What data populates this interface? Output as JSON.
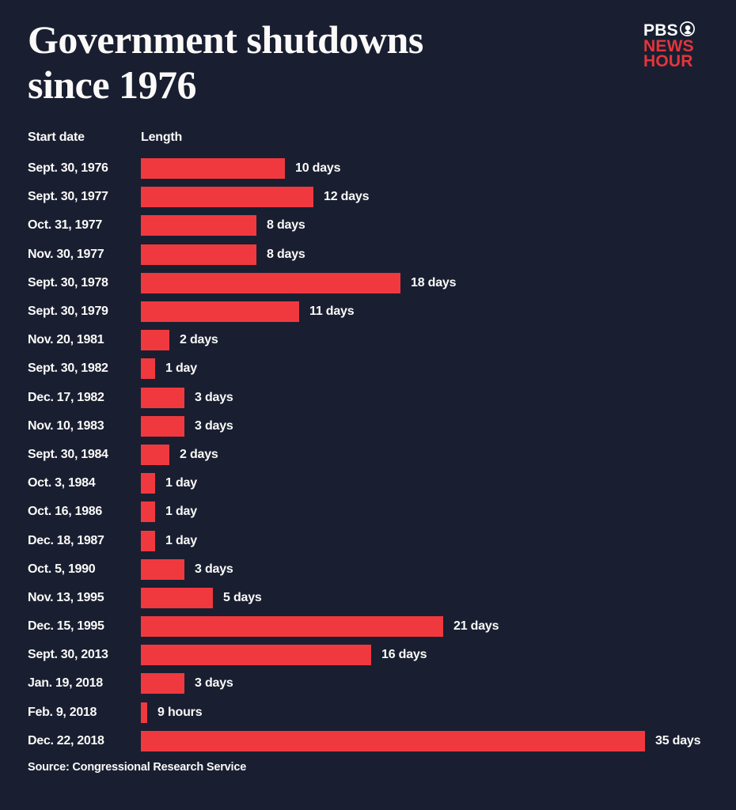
{
  "title": {
    "line1": "Government shutdowns",
    "line2": "since 1976"
  },
  "logo": {
    "pbs": "PBS",
    "news": "NEWS",
    "hour": "HOUR"
  },
  "table_headers": {
    "start_date": "Start date",
    "length": "Length"
  },
  "source": "Source: Congressional Research Service",
  "colors": {
    "background": "#191f31",
    "bar_red": "#f0393f",
    "logo_red": "#e3353c",
    "text_white": "#fbfaf8"
  },
  "chart_data": {
    "type": "bar",
    "orientation": "horizontal",
    "title": "Government shutdowns since 1976",
    "ylabel": "Start date",
    "xlabel": "Length",
    "unit": "days",
    "xlim": [
      0,
      35
    ],
    "grid": false,
    "legend": false,
    "rows": [
      {
        "start_date": "Sept. 30, 1976",
        "length_label": "10 days",
        "length_days": 10
      },
      {
        "start_date": "Sept. 30, 1977",
        "length_label": "12 days",
        "length_days": 12
      },
      {
        "start_date": "Oct. 31, 1977",
        "length_label": "8 days",
        "length_days": 8
      },
      {
        "start_date": "Nov. 30, 1977",
        "length_label": "8 days",
        "length_days": 8
      },
      {
        "start_date": "Sept. 30, 1978",
        "length_label": "18 days",
        "length_days": 18
      },
      {
        "start_date": "Sept. 30, 1979",
        "length_label": "11 days",
        "length_days": 11
      },
      {
        "start_date": "Nov. 20, 1981",
        "length_label": "2 days",
        "length_days": 2
      },
      {
        "start_date": "Sept. 30, 1982",
        "length_label": "1 day",
        "length_days": 1
      },
      {
        "start_date": "Dec. 17, 1982",
        "length_label": "3 days",
        "length_days": 3
      },
      {
        "start_date": "Nov. 10, 1983",
        "length_label": "3 days",
        "length_days": 3
      },
      {
        "start_date": "Sept. 30, 1984",
        "length_label": "2 days",
        "length_days": 2
      },
      {
        "start_date": "Oct. 3, 1984",
        "length_label": "1 day",
        "length_days": 1
      },
      {
        "start_date": "Oct. 16, 1986",
        "length_label": "1 day",
        "length_days": 1
      },
      {
        "start_date": "Dec. 18, 1987",
        "length_label": "1 day",
        "length_days": 1
      },
      {
        "start_date": "Oct. 5, 1990",
        "length_label": "3 days",
        "length_days": 3
      },
      {
        "start_date": "Nov. 13, 1995",
        "length_label": "5 days",
        "length_days": 5
      },
      {
        "start_date": "Dec. 15, 1995",
        "length_label": "21 days",
        "length_days": 21
      },
      {
        "start_date": "Sept. 30, 2013",
        "length_label": "16 days",
        "length_days": 16
      },
      {
        "start_date": "Jan. 19, 2018",
        "length_label": "3 days",
        "length_days": 3
      },
      {
        "start_date": "Feb. 9, 2018",
        "length_label": "9 hours",
        "length_days": 0.375
      },
      {
        "start_date": "Dec. 22, 2018",
        "length_label": "35 days",
        "length_days": 35
      }
    ],
    "source": "Source: Congressional Research Service"
  }
}
